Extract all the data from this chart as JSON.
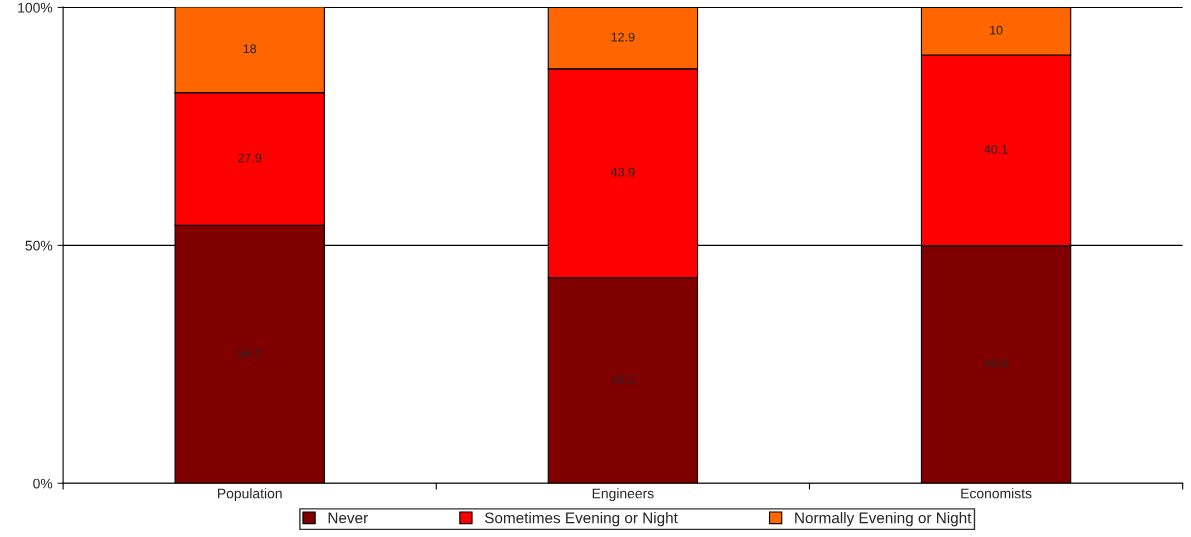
{
  "chart_data": {
    "type": "bar",
    "stacked": true,
    "categories": [
      "Population",
      "Engineers",
      "Economists"
    ],
    "series": [
      {
        "name": "Never",
        "color": "#800000",
        "values": [
          54.2,
          43.2,
          49.9
        ]
      },
      {
        "name": "Sometimes Evening or Night",
        "color": "#ff0000",
        "values": [
          27.9,
          43.9,
          40.1
        ]
      },
      {
        "name": "Normally Evening or Night",
        "color": "#ff6600",
        "values": [
          18,
          12.9,
          10
        ]
      }
    ],
    "ylim": [
      0,
      100.1
    ],
    "yticks": [
      {
        "value": 0,
        "label": "0%"
      },
      {
        "value": 50,
        "label": "50%"
      },
      {
        "value": 100,
        "label": "100%"
      }
    ],
    "grid": "y",
    "legend": "bottom",
    "data_labels": true
  }
}
